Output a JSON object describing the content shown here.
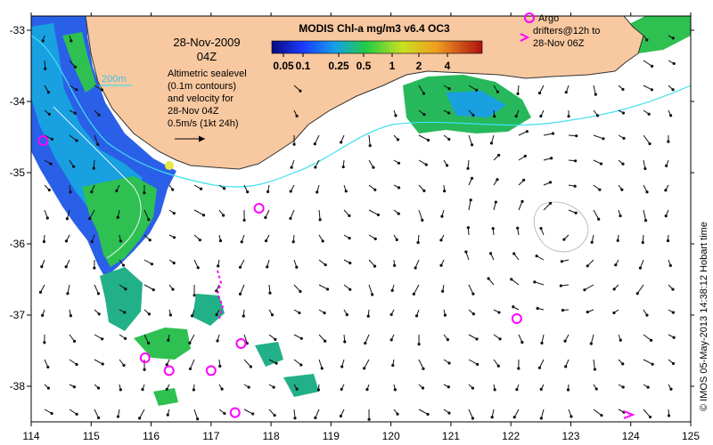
{
  "map": {
    "date_line1": "28-Nov-2009",
    "date_line2": "04Z",
    "isobath_label": "200m",
    "note_lines": [
      "Altimetric sealevel",
      "(0.1m contours)",
      "and velocity for",
      "28-Nov 04Z"
    ],
    "velocity_scale_label": "0.5m/s (1kt 24h)",
    "colorbar": {
      "title": "MODIS Chl-a mg/m3 v6.4 OC3",
      "tick_labels": [
        "0.05",
        "0.1",
        "0.25",
        "0.5",
        "1",
        "2",
        "4"
      ]
    },
    "argo_legend": {
      "line1": "Argo",
      "line2": "drifters@12h to",
      "line3": "28-Nov 06Z"
    },
    "credit": "© IMOS 05-May-2013 14:38:12 Hobart time",
    "x_ticks": [
      "114",
      "115",
      "116",
      "117",
      "118",
      "119",
      "120",
      "121",
      "122",
      "123",
      "124",
      "125"
    ],
    "y_ticks": [
      "-33",
      "-34",
      "-35",
      "-36",
      "-37",
      "-38"
    ],
    "colors": {
      "land": "#f8c8a0",
      "isobath": "#40e0f0",
      "argo": "#ff00ff",
      "chl_low": "#1a3cff",
      "chl_mid": "#22cc44",
      "chl_high": "#c01010"
    },
    "argo_floats": [
      {
        "lon": 114.2,
        "lat": -34.55
      },
      {
        "lon": 117.8,
        "lat": -35.5
      },
      {
        "lon": 115.9,
        "lat": -37.6
      },
      {
        "lon": 116.3,
        "lat": -37.78
      },
      {
        "lon": 117.0,
        "lat": -37.78
      },
      {
        "lon": 117.5,
        "lat": -37.4
      },
      {
        "lon": 117.4,
        "lat": -38.37
      },
      {
        "lon": 122.1,
        "lat": -37.05
      }
    ]
  }
}
